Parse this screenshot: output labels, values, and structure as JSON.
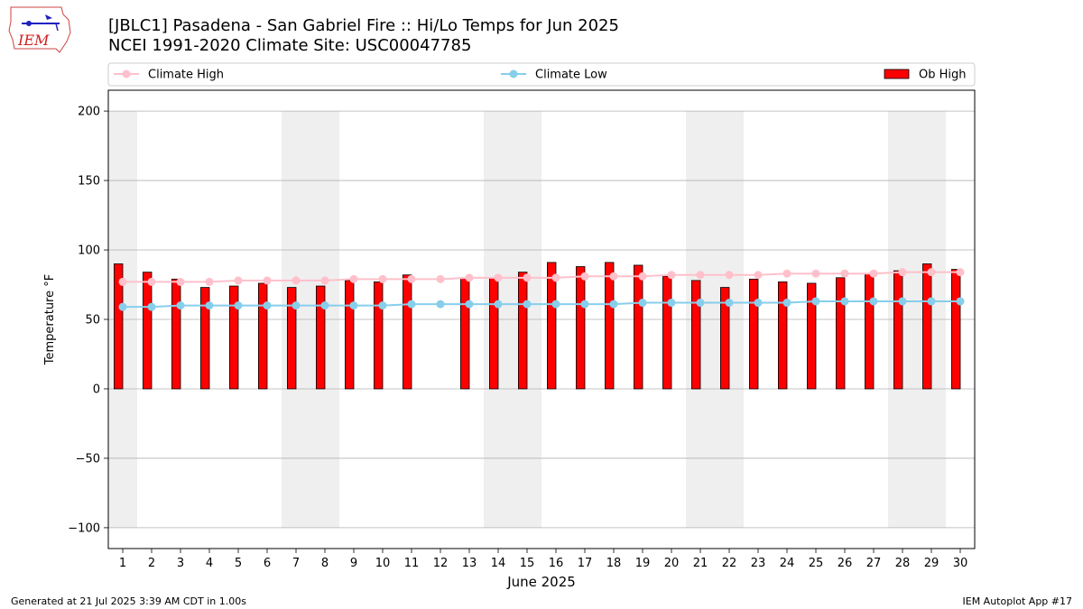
{
  "header": {
    "title_line1": "[JBLC1] Pasadena - San Gabriel Fire :: Hi/Lo Temps for Jun 2025",
    "title_line2": "NCEI 1991-2020 Climate Site: USC00047785",
    "logo_text": "IEM"
  },
  "footer": {
    "left": "Generated at 21 Jul 2025 3:39 AM CDT in 1.00s",
    "right": "IEM Autoplot App #17"
  },
  "colors": {
    "climate_high": "#ffc0cb",
    "climate_low": "#87ceeb",
    "ob_high": "#ff0000",
    "weekend_shade": "#efefef",
    "grid": "#b0b0b0"
  },
  "chart_data": {
    "type": "bar",
    "xlabel": "June 2025",
    "ylabel": "Temperature °F",
    "xlim": [
      0.5,
      30.5
    ],
    "ylim": [
      -115,
      215
    ],
    "yticks": [
      -100,
      -50,
      0,
      50,
      100,
      150,
      200
    ],
    "ytick_labels": [
      "−100",
      "−50",
      "0",
      "50",
      "100",
      "150",
      "200"
    ],
    "x": [
      1,
      2,
      3,
      4,
      5,
      6,
      7,
      8,
      9,
      10,
      11,
      12,
      13,
      14,
      15,
      16,
      17,
      18,
      19,
      20,
      21,
      22,
      23,
      24,
      25,
      26,
      27,
      28,
      29,
      30
    ],
    "grid": "horizontal",
    "legend_position": "top",
    "shaded_ranges": [
      [
        0.5,
        1.5
      ],
      [
        6.5,
        8.5
      ],
      [
        13.5,
        15.5
      ],
      [
        20.5,
        22.5
      ],
      [
        27.5,
        29.5
      ]
    ],
    "shade_ylim": [
      -100,
      200
    ],
    "series": [
      {
        "name": "Climate High",
        "kind": "line",
        "values": [
          77,
          77,
          77,
          77,
          78,
          78,
          78,
          78,
          79,
          79,
          79,
          79,
          80,
          80,
          80,
          80,
          81,
          81,
          81,
          82,
          82,
          82,
          82,
          83,
          83,
          83,
          83,
          84,
          84,
          84
        ]
      },
      {
        "name": "Climate Low",
        "kind": "line",
        "values": [
          59,
          59,
          60,
          60,
          60,
          60,
          60,
          60,
          60,
          60,
          61,
          61,
          61,
          61,
          61,
          61,
          61,
          61,
          62,
          62,
          62,
          62,
          62,
          62,
          63,
          63,
          63,
          63,
          63,
          63
        ]
      },
      {
        "name": "Ob High",
        "kind": "bar",
        "values": [
          90,
          84,
          79,
          73,
          74,
          76,
          73,
          74,
          78,
          77,
          82,
          null,
          80,
          80,
          84,
          91,
          88,
          91,
          89,
          81,
          78,
          73,
          79,
          77,
          76,
          80,
          83,
          85,
          90,
          86
        ]
      }
    ]
  }
}
